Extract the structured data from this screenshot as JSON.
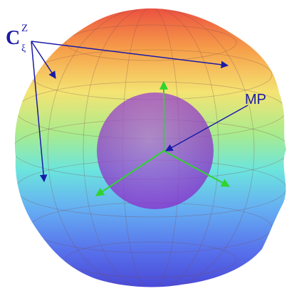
{
  "labels": {
    "c": {
      "base": "C",
      "sup": "Z",
      "sub": "ξ"
    },
    "mp": "MP"
  }
}
